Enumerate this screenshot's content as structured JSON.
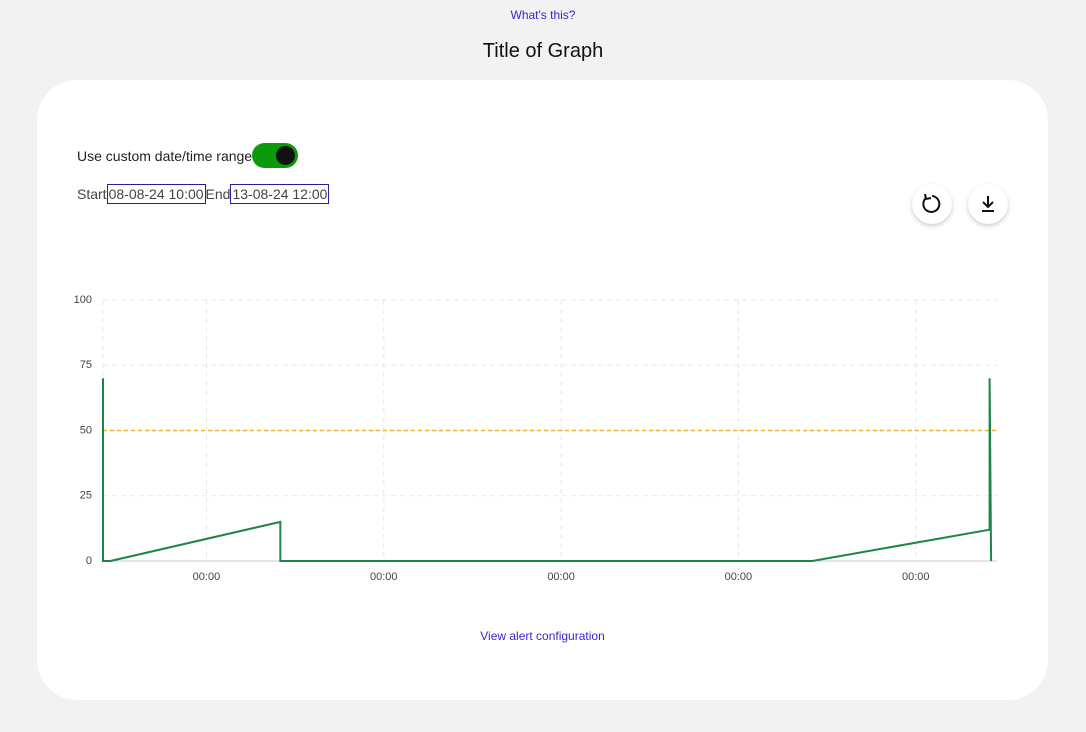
{
  "header": {
    "help_link": "What's this?",
    "title": "Title of Graph"
  },
  "controls": {
    "toggle_label": "Use custom date/time range",
    "toggle_on": true,
    "start_label": "Start",
    "start_value": "08-08-24 10:00",
    "end_label": "End",
    "end_value": "13-08-24 12:00"
  },
  "chart_data": {
    "type": "line",
    "x": [
      0,
      0,
      1,
      24,
      24,
      96,
      120,
      120,
      120.2
    ],
    "values": [
      70,
      0,
      0,
      15,
      0,
      0,
      12,
      70,
      0
    ],
    "color": "#1e8449",
    "xlim": [
      0,
      121
    ],
    "xticks": [
      {
        "value": 14,
        "label": "00:00"
      },
      {
        "value": 38,
        "label": "00:00"
      },
      {
        "value": 62,
        "label": "00:00"
      },
      {
        "value": 86,
        "label": "00:00"
      },
      {
        "value": 110,
        "label": "00:00"
      }
    ],
    "ylim": [
      0,
      100
    ],
    "yticks": [
      0,
      25,
      50,
      75,
      100
    ],
    "threshold": 50,
    "threshold_color": "#f0b429",
    "grid": true
  },
  "footer": {
    "alert_link": "View alert configuration"
  }
}
